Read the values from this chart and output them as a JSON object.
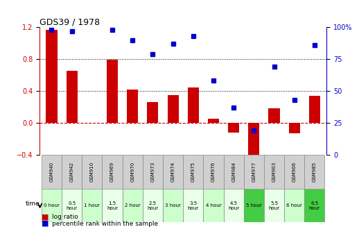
{
  "title": "GDS39 / 1978",
  "gsm_labels": [
    "GSM940",
    "GSM942",
    "GSM910",
    "GSM969",
    "GSM970",
    "GSM973",
    "GSM974",
    "GSM975",
    "GSM976",
    "GSM984",
    "GSM977",
    "GSM903",
    "GSM906",
    "GSM985"
  ],
  "time_labels": [
    "0 hour",
    "0.5\nhour",
    "1 hour",
    "1.5\nhour",
    "2 hour",
    "2.5\nhour",
    "3 hour",
    "3.5\nhour",
    "4 hour",
    "4.5\nhour",
    "5 hour",
    "5.5\nhour",
    "6 hour",
    "6.5\nhour"
  ],
  "log_ratio": [
    1.17,
    0.65,
    0.0,
    0.79,
    0.42,
    0.26,
    0.35,
    0.44,
    0.05,
    -0.12,
    -0.52,
    0.18,
    -0.13,
    0.34
  ],
  "percentile": [
    98,
    97,
    null,
    98,
    90,
    79,
    87,
    93,
    58,
    37,
    19,
    69,
    43,
    86
  ],
  "time_bg_colors": [
    "#ccffcc",
    "#e8ffe8",
    "#ccffcc",
    "#e8ffe8",
    "#ccffcc",
    "#e8ffe8",
    "#ccffcc",
    "#e8ffe8",
    "#ccffcc",
    "#e8ffe8",
    "#44cc44",
    "#e8ffe8",
    "#ccffcc",
    "#44cc44"
  ],
  "bar_color": "#cc0000",
  "dot_color": "#0000cc",
  "ylim_left": [
    -0.4,
    1.2
  ],
  "ylim_right": [
    0,
    100
  ],
  "yticks_left": [
    -0.4,
    0.0,
    0.4,
    0.8,
    1.2
  ],
  "yticks_right": [
    0,
    25,
    50,
    75,
    100
  ],
  "hline_zero_color": "#cc0000",
  "dotline_y": [
    0.4,
    0.8
  ],
  "grid_color": "#000000",
  "background_color": "#ffffff",
  "legend_log_ratio": "log ratio",
  "legend_percentile": "percentile rank within the sample"
}
